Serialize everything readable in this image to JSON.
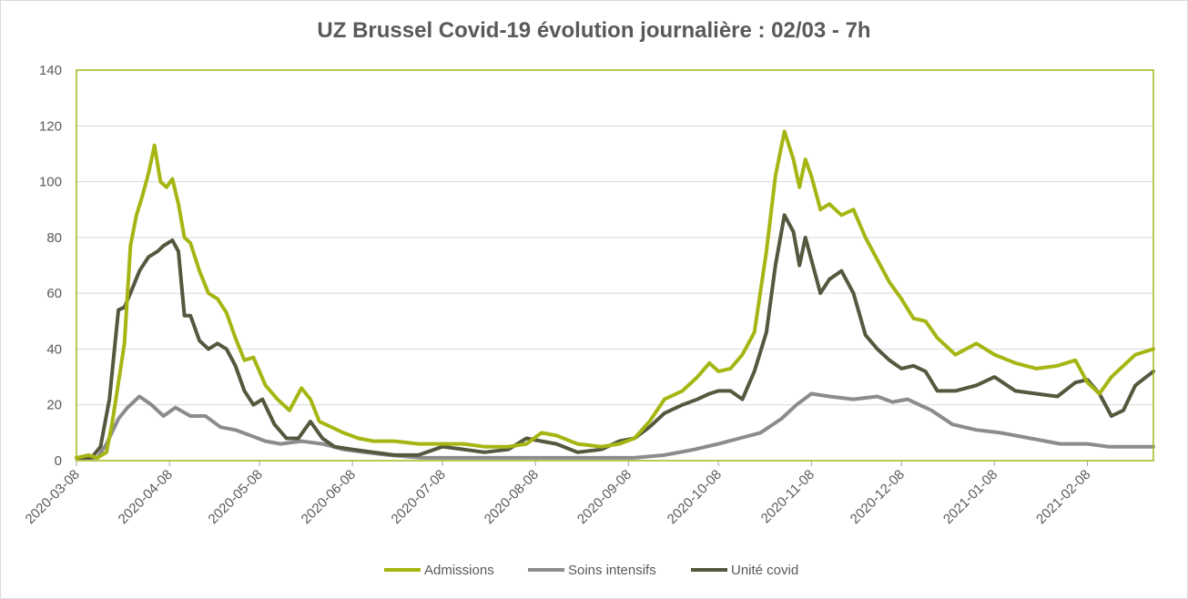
{
  "chart_data": {
    "type": "line",
    "title": "UZ Brussel Covid-19 évolution journalière : 02/03 - 7h",
    "xlabel": "",
    "ylabel": "",
    "ylim": [
      0,
      140
    ],
    "yticks": [
      0,
      20,
      40,
      60,
      80,
      100,
      120,
      140
    ],
    "xlim": [
      "2020-03-08",
      "2021-03-02"
    ],
    "xticks": [
      "2020-03-08",
      "2020-04-08",
      "2020-05-08",
      "2020-06-08",
      "2020-07-08",
      "2020-08-08",
      "2020-09-08",
      "2020-10-08",
      "2020-11-08",
      "2020-12-08",
      "2021-01-08",
      "2021-02-08"
    ],
    "grid": true,
    "legend_position": "bottom",
    "colors": {
      "Admissions": "#a5b613",
      "Soins intensifs": "#8c8c8c",
      "Unité covid": "#55583e",
      "plot_border": "#a5b613",
      "grid": "#d9d9d9"
    },
    "series": [
      {
        "name": "Admissions",
        "x": [
          "2020-03-08",
          "2020-03-12",
          "2020-03-15",
          "2020-03-18",
          "2020-03-20",
          "2020-03-22",
          "2020-03-24",
          "2020-03-26",
          "2020-03-28",
          "2020-03-30",
          "2020-04-01",
          "2020-04-03",
          "2020-04-05",
          "2020-04-07",
          "2020-04-09",
          "2020-04-11",
          "2020-04-13",
          "2020-04-15",
          "2020-04-18",
          "2020-04-21",
          "2020-04-24",
          "2020-04-27",
          "2020-04-30",
          "2020-05-03",
          "2020-05-06",
          "2020-05-10",
          "2020-05-14",
          "2020-05-18",
          "2020-05-22",
          "2020-05-25",
          "2020-05-28",
          "2020-06-01",
          "2020-06-05",
          "2020-06-10",
          "2020-06-15",
          "2020-06-22",
          "2020-06-30",
          "2020-07-08",
          "2020-07-15",
          "2020-07-22",
          "2020-07-30",
          "2020-08-05",
          "2020-08-10",
          "2020-08-15",
          "2020-08-22",
          "2020-08-30",
          "2020-09-05",
          "2020-09-10",
          "2020-09-15",
          "2020-09-20",
          "2020-09-26",
          "2020-10-01",
          "2020-10-05",
          "2020-10-08",
          "2020-10-12",
          "2020-10-16",
          "2020-10-20",
          "2020-10-24",
          "2020-10-27",
          "2020-10-30",
          "2020-11-02",
          "2020-11-04",
          "2020-11-06",
          "2020-11-08",
          "2020-11-11",
          "2020-11-14",
          "2020-11-18",
          "2020-11-22",
          "2020-11-26",
          "2020-11-30",
          "2020-12-04",
          "2020-12-08",
          "2020-12-12",
          "2020-12-16",
          "2020-12-20",
          "2020-12-26",
          "2021-01-02",
          "2021-01-08",
          "2021-01-15",
          "2021-01-22",
          "2021-01-29",
          "2021-02-04",
          "2021-02-08",
          "2021-02-12",
          "2021-02-16",
          "2021-02-20",
          "2021-02-24",
          "2021-03-02"
        ],
        "values": [
          1,
          2,
          1,
          3,
          14,
          28,
          42,
          77,
          88,
          95,
          103,
          113,
          100,
          98,
          101,
          92,
          80,
          78,
          68,
          60,
          58,
          53,
          44,
          36,
          37,
          27,
          22,
          18,
          26,
          22,
          14,
          12,
          10,
          8,
          7,
          7,
          6,
          6,
          6,
          5,
          5,
          6,
          10,
          9,
          6,
          5,
          6,
          8,
          14,
          22,
          25,
          30,
          35,
          32,
          33,
          38,
          46,
          75,
          102,
          118,
          108,
          98,
          108,
          102,
          90,
          92,
          88,
          90,
          80,
          72,
          64,
          58,
          51,
          50,
          44,
          38,
          42,
          38,
          35,
          33,
          34,
          36,
          28,
          24,
          30,
          34,
          38,
          40
        ]
      },
      {
        "name": "Soins intensifs",
        "x": [
          "2020-03-08",
          "2020-03-15",
          "2020-03-18",
          "2020-03-22",
          "2020-03-25",
          "2020-03-29",
          "2020-04-02",
          "2020-04-06",
          "2020-04-10",
          "2020-04-15",
          "2020-04-20",
          "2020-04-25",
          "2020-04-30",
          "2020-05-05",
          "2020-05-10",
          "2020-05-15",
          "2020-05-22",
          "2020-05-29",
          "2020-06-05",
          "2020-06-12",
          "2020-06-20",
          "2020-07-01",
          "2020-07-10",
          "2020-07-20",
          "2020-08-01",
          "2020-08-10",
          "2020-08-20",
          "2020-08-30",
          "2020-09-10",
          "2020-09-20",
          "2020-09-30",
          "2020-10-08",
          "2020-10-15",
          "2020-10-22",
          "2020-10-29",
          "2020-11-03",
          "2020-11-08",
          "2020-11-14",
          "2020-11-22",
          "2020-11-30",
          "2020-12-05",
          "2020-12-10",
          "2020-12-18",
          "2020-12-25",
          "2021-01-02",
          "2021-01-10",
          "2021-01-20",
          "2021-01-30",
          "2021-02-08",
          "2021-02-15",
          "2021-02-22",
          "2021-03-02"
        ],
        "values": [
          1,
          1,
          6,
          15,
          19,
          23,
          20,
          16,
          19,
          16,
          16,
          12,
          11,
          9,
          7,
          6,
          7,
          6,
          4,
          3,
          2,
          1,
          1,
          1,
          1,
          1,
          1,
          1,
          1,
          2,
          4,
          6,
          8,
          10,
          15,
          20,
          24,
          23,
          22,
          23,
          21,
          22,
          18,
          13,
          11,
          10,
          8,
          6,
          6,
          5,
          5,
          5
        ]
      },
      {
        "name": "Unité covid",
        "x": [
          "2020-03-08",
          "2020-03-13",
          "2020-03-16",
          "2020-03-19",
          "2020-03-22",
          "2020-03-24",
          "2020-03-26",
          "2020-03-29",
          "2020-04-01",
          "2020-04-04",
          "2020-04-06",
          "2020-04-09",
          "2020-04-11",
          "2020-04-13",
          "2020-04-15",
          "2020-04-18",
          "2020-04-21",
          "2020-04-24",
          "2020-04-27",
          "2020-04-30",
          "2020-05-03",
          "2020-05-06",
          "2020-05-09",
          "2020-05-13",
          "2020-05-17",
          "2020-05-21",
          "2020-05-25",
          "2020-05-29",
          "2020-06-02",
          "2020-06-08",
          "2020-06-15",
          "2020-06-22",
          "2020-06-30",
          "2020-07-08",
          "2020-07-15",
          "2020-07-22",
          "2020-07-30",
          "2020-08-05",
          "2020-08-10",
          "2020-08-15",
          "2020-08-22",
          "2020-08-30",
          "2020-09-05",
          "2020-09-10",
          "2020-09-15",
          "2020-09-20",
          "2020-09-26",
          "2020-10-01",
          "2020-10-05",
          "2020-10-08",
          "2020-10-12",
          "2020-10-16",
          "2020-10-20",
          "2020-10-24",
          "2020-10-27",
          "2020-10-30",
          "2020-11-02",
          "2020-11-04",
          "2020-11-06",
          "2020-11-08",
          "2020-11-11",
          "2020-11-14",
          "2020-11-18",
          "2020-11-22",
          "2020-11-26",
          "2020-11-30",
          "2020-12-04",
          "2020-12-08",
          "2020-12-12",
          "2020-12-16",
          "2020-12-20",
          "2020-12-26",
          "2021-01-02",
          "2021-01-08",
          "2021-01-15",
          "2021-01-22",
          "2021-01-29",
          "2021-02-04",
          "2021-02-08",
          "2021-02-12",
          "2021-02-16",
          "2021-02-20",
          "2021-02-24",
          "2021-03-02"
        ],
        "values": [
          1,
          1,
          5,
          22,
          54,
          55,
          60,
          68,
          73,
          75,
          77,
          79,
          75,
          52,
          52,
          43,
          40,
          42,
          40,
          34,
          25,
          20,
          22,
          13,
          8,
          8,
          14,
          8,
          5,
          4,
          3,
          2,
          2,
          5,
          4,
          3,
          4,
          8,
          7,
          6,
          3,
          4,
          7,
          8,
          12,
          17,
          20,
          22,
          24,
          25,
          25,
          22,
          32,
          46,
          70,
          88,
          82,
          70,
          80,
          72,
          60,
          65,
          68,
          60,
          45,
          40,
          36,
          33,
          34,
          32,
          25,
          25,
          27,
          30,
          25,
          24,
          23,
          28,
          29,
          24,
          16,
          18,
          27,
          32
        ]
      }
    ]
  }
}
